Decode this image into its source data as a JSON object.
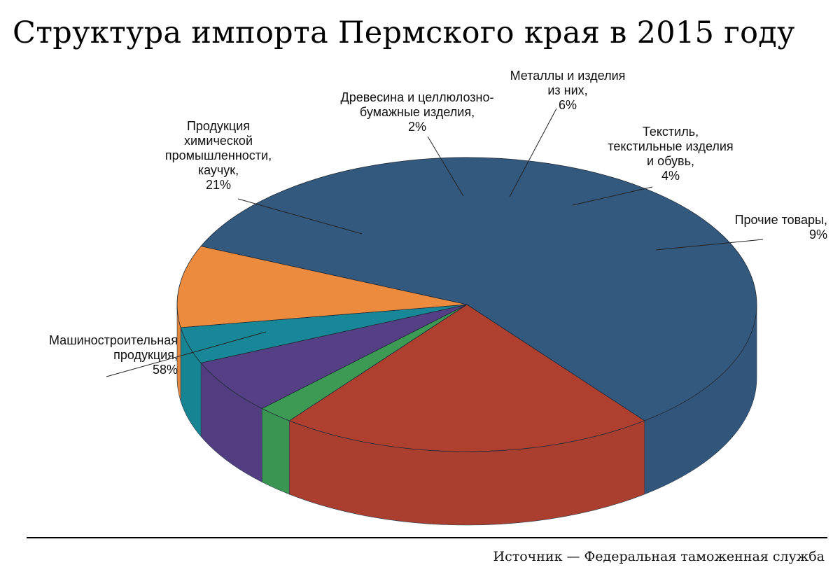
{
  "header": {
    "title": "Структура импорта Пермского края в 2015 году"
  },
  "footer": {
    "source": "Источник — Федеральная таможенная служба"
  },
  "chart_data": {
    "type": "pie",
    "title": "Структура импорта Пермского края в 2015 году",
    "legend": "none (direct labels with leader lines)",
    "slices": [
      {
        "label": [
          "Машиностроительная",
          "продукция,"
        ],
        "value": 58,
        "value_label": "58%",
        "color": "#34597f"
      },
      {
        "label": [
          "Продукция",
          "химической",
          "промышленности,",
          "каучук,"
        ],
        "value": 21,
        "value_label": "21%",
        "color": "#af4030"
      },
      {
        "label": [
          "Древесина и целлюлозно-",
          "бумажные изделия,"
        ],
        "value": 2,
        "value_label": "2%",
        "color": "#3d9a55"
      },
      {
        "label": [
          "Металлы и изделия",
          "из них,"
        ],
        "value": 6,
        "value_label": "6%",
        "color": "#553f85"
      },
      {
        "label": [
          "Текстиль,",
          "текстильные изделия",
          "и обувь,"
        ],
        "value": 4,
        "value_label": "4%",
        "color": "#188898"
      },
      {
        "label": [
          "Прочие товары,"
        ],
        "value": 9,
        "value_label": "9%",
        "color": "#ec8a3e"
      }
    ]
  }
}
